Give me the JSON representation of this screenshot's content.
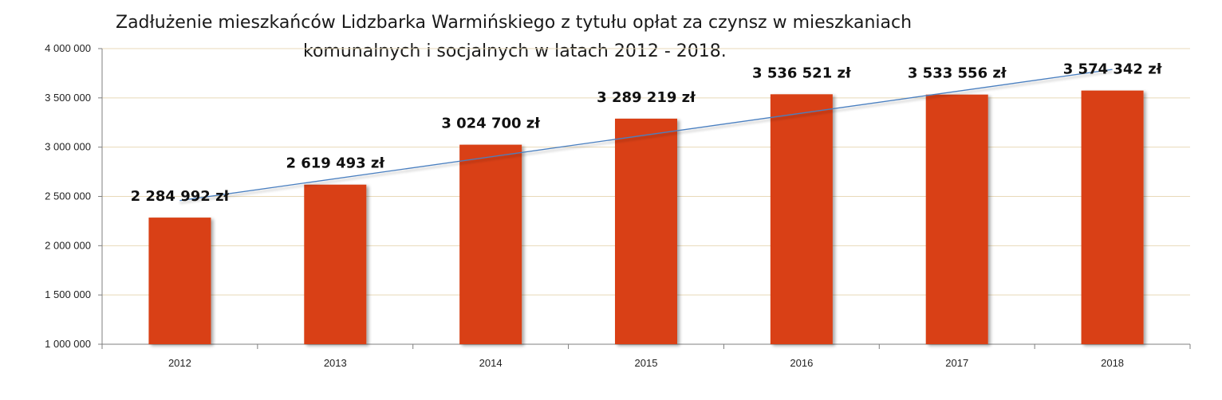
{
  "chart_data": {
    "type": "bar",
    "title_line1": "Zadłużenie mieszkańców Lidzbarka Warmińskiego z tytułu opłat za czynsz w mieszkaniach",
    "title_line2": "komunalnych i socjalnych w latach 2012 - 2018.",
    "xlabel": "",
    "ylabel": "",
    "categories": [
      "2012",
      "2013",
      "2014",
      "2015",
      "2016",
      "2017",
      "2018"
    ],
    "values": [
      2284992,
      2619493,
      3024700,
      3289219,
      3536521,
      3533556,
      3574342
    ],
    "data_labels": [
      "2 284 992 zł",
      "2 619 493 zł",
      "3 024 700 zł",
      "3 289 219 zł",
      "3 536 521 zł",
      "3 533 556 zł",
      "3 574 342 zł"
    ],
    "ylim": [
      1000000,
      4000000
    ],
    "yticks": [
      1000000,
      1500000,
      2000000,
      2500000,
      3000000,
      3500000,
      4000000
    ],
    "ytick_labels": [
      "1 000 000",
      "1 500 000",
      "2 000 000",
      "2 500 000",
      "3 000 000",
      "3 500 000",
      "4 000 000"
    ],
    "trendline": true,
    "grid": true,
    "legend": false,
    "colors": {
      "bar": "#d94112",
      "trendline": "#4a7fc0",
      "grid": "#e8d9b8",
      "axis": "#7f7f7f"
    }
  }
}
